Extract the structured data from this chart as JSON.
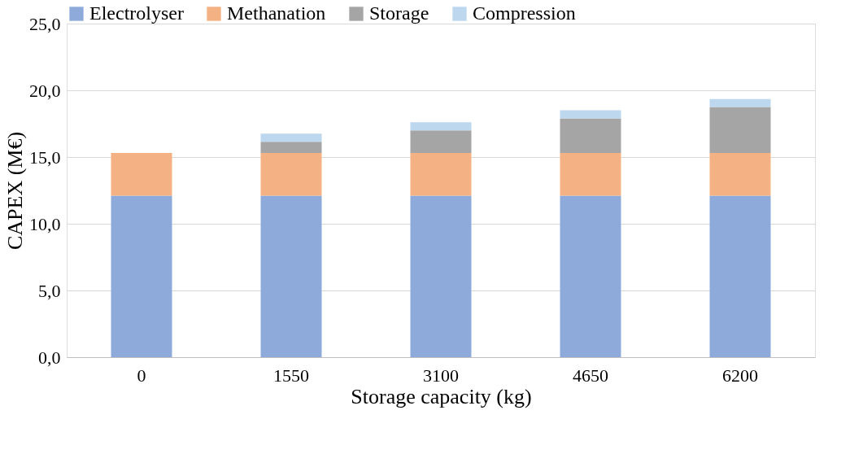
{
  "chart_data": {
    "type": "bar",
    "stacked": true,
    "xlabel": "Storage capacity (kg)",
    "ylabel": "CAPEX (M€)",
    "categories": [
      "0",
      "1550",
      "3100",
      "4650",
      "6200"
    ],
    "series": [
      {
        "name": "Electrolyser",
        "color": "#8eaadb",
        "values": [
          12.1,
          12.1,
          12.1,
          12.1,
          12.1
        ]
      },
      {
        "name": "Methanation",
        "color": "#f4b183",
        "values": [
          3.2,
          3.2,
          3.2,
          3.2,
          3.2
        ]
      },
      {
        "name": "Storage",
        "color": "#a5a5a5",
        "values": [
          0,
          0.85,
          1.7,
          2.6,
          3.45
        ]
      },
      {
        "name": "Compression",
        "color": "#bdd7ee",
        "values": [
          0,
          0.6,
          0.6,
          0.6,
          0.6
        ]
      }
    ],
    "ylim": [
      0,
      25
    ],
    "yticks": [
      {
        "value": 0,
        "label": "0,0"
      },
      {
        "value": 5,
        "label": "5,0"
      },
      {
        "value": 10,
        "label": "10,0"
      },
      {
        "value": 15,
        "label": "15,0"
      },
      {
        "value": 20,
        "label": "20,0"
      },
      {
        "value": 25,
        "label": "25,0"
      }
    ],
    "grid": "y",
    "legend": "top"
  }
}
